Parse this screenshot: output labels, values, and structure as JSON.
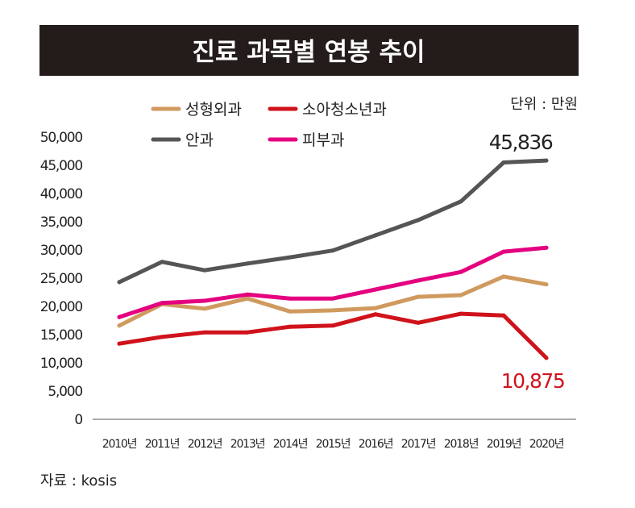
{
  "chart_data": {
    "type": "line",
    "title": "진료 과목별 연봉 추이",
    "unit_note": "단위 : 만원",
    "source": "자료 : kosis",
    "categories": [
      "2010년",
      "2011년",
      "2012년",
      "2013년",
      "2014년",
      "2015년",
      "2016년",
      "2017년",
      "2018년",
      "2019년",
      "2020년"
    ],
    "ylim": [
      0,
      50000
    ],
    "yticks": [
      0,
      5000,
      10000,
      15000,
      20000,
      25000,
      30000,
      35000,
      40000,
      45000,
      50000
    ],
    "ytick_labels": [
      "0",
      "5,000",
      "10,000",
      "15,000",
      "20,000",
      "25,000",
      "30,000",
      "35,000",
      "40,000",
      "45,000",
      "50,000"
    ],
    "grid": false,
    "legend_position": "top",
    "series": [
      {
        "name": "성형외과",
        "color": "#d09a5f",
        "values": [
          16600,
          20400,
          19600,
          21400,
          19100,
          19300,
          19700,
          21700,
          22000,
          25300,
          23900
        ]
      },
      {
        "name": "소아청소년과",
        "color": "#d0121b",
        "values": [
          13400,
          14600,
          15400,
          15400,
          16400,
          16600,
          18600,
          17100,
          18700,
          18400,
          10875
        ]
      },
      {
        "name": "안과",
        "color": "#555555",
        "values": [
          24300,
          27900,
          26400,
          27600,
          28700,
          29900,
          32600,
          35300,
          38600,
          45500,
          45836
        ]
      },
      {
        "name": "피부과",
        "color": "#e4007f",
        "values": [
          18100,
          20600,
          21000,
          22100,
          21400,
          21400,
          23000,
          24600,
          26100,
          29700,
          30400
        ]
      }
    ],
    "annotations": [
      {
        "text": "45,836",
        "series": "안과",
        "color": "#222222"
      },
      {
        "text": "10,875",
        "series": "소아청소년과",
        "color": "#d0121b"
      }
    ],
    "title_bar_color": "#231c1a"
  }
}
